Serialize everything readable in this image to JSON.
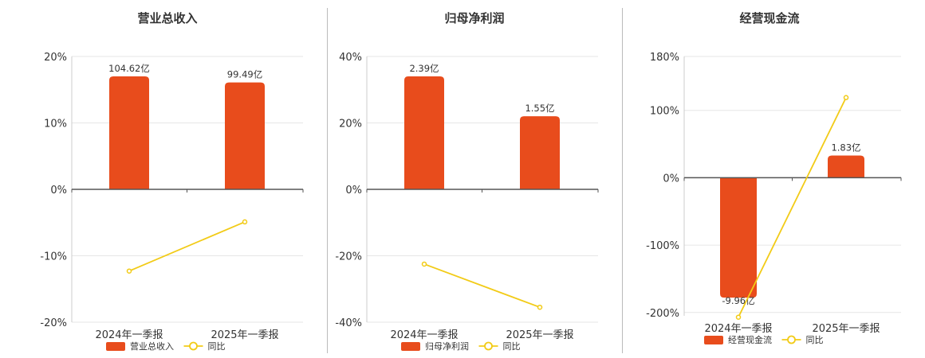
{
  "colors": {
    "bar": "#e84c1c",
    "line": "#f2cb17",
    "axis": "#555555",
    "grid": "#e6e6e6"
  },
  "chart_data": [
    {
      "type": "bar",
      "title": "营业总收入",
      "categories": [
        "2024年一季报",
        "2025年一季报"
      ],
      "bar_series": {
        "name": "营业总收入",
        "values": [
          17.0,
          16.1
        ],
        "labels": [
          "104.62亿",
          "99.49亿"
        ]
      },
      "line_series": {
        "name": "同比",
        "values": [
          -12.3,
          -4.9
        ]
      },
      "ylim": [
        -20,
        20
      ],
      "yticks": [
        -20,
        -10,
        0,
        10,
        20
      ],
      "ytick_labels": [
        "-20%",
        "-10%",
        "0%",
        "10%",
        "20%"
      ],
      "grid": true,
      "legend": "bottom"
    },
    {
      "type": "bar",
      "title": "归母净利润",
      "categories": [
        "2024年一季报",
        "2025年一季报"
      ],
      "bar_series": {
        "name": "归母净利润",
        "values": [
          34.0,
          22.0
        ],
        "labels": [
          "2.39亿",
          "1.55亿"
        ]
      },
      "line_series": {
        "name": "同比",
        "values": [
          -22.5,
          -35.5
        ]
      },
      "ylim": [
        -40,
        40
      ],
      "yticks": [
        -40,
        -20,
        0,
        20,
        40
      ],
      "ytick_labels": [
        "-40%",
        "-20%",
        "0%",
        "20%",
        "40%"
      ],
      "grid": true,
      "legend": "bottom"
    },
    {
      "type": "bar",
      "title": "经营现金流",
      "categories": [
        "2024年一季报",
        "2025年一季报"
      ],
      "bar_series": {
        "name": "经营现金流",
        "values": [
          -178,
          33
        ],
        "labels": [
          "-9.96亿",
          "1.83亿"
        ]
      },
      "line_series": {
        "name": "同比",
        "values": [
          -207,
          119
        ]
      },
      "ylim": [
        -205,
        180
      ],
      "yticks": [
        -200,
        -100,
        0,
        100,
        180
      ],
      "ytick_labels": [
        "-200%",
        "-100%",
        "0%",
        "100%",
        "180%"
      ],
      "grid": true,
      "legend": "bottom"
    }
  ]
}
